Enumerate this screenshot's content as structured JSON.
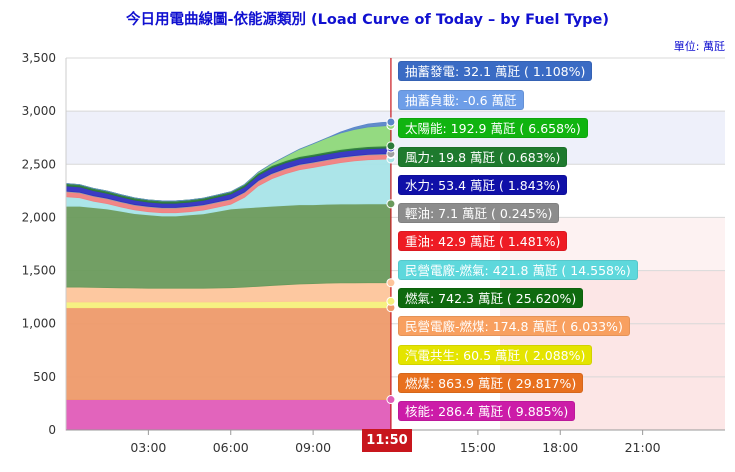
{
  "title": "今日用電曲線圖-依能源類別 (Load Curve of Today – by Fuel Type)",
  "unit_label": "單位: 萬瓩",
  "current_time": "11:50",
  "chart_data": {
    "type": "area",
    "stacked": true,
    "title": "今日用電曲線圖-依能源類別 (Load Curve of Today – by Fuel Type)",
    "ylim": [
      0,
      3500
    ],
    "yticks": [
      "0",
      "500",
      "1,000",
      "1,500",
      "2,000",
      "2,500",
      "3,000",
      "3,500"
    ],
    "xticks": [
      "03:00",
      "06:00",
      "09:00",
      "15:00",
      "18:00",
      "21:00"
    ],
    "x": [
      "00:00",
      "00:30",
      "01:00",
      "01:30",
      "02:00",
      "02:30",
      "03:00",
      "03:30",
      "04:00",
      "04:30",
      "05:00",
      "05:30",
      "06:00",
      "06:30",
      "07:00",
      "07:30",
      "08:00",
      "08:30",
      "09:00",
      "09:30",
      "10:00",
      "10:30",
      "11:00",
      "11:30",
      "11:50"
    ],
    "series": [
      {
        "name": "核能",
        "color": "#e05cb8",
        "values": [
          286,
          286,
          286,
          286,
          286,
          286,
          286,
          286,
          286,
          286,
          286,
          286,
          286,
          286,
          286,
          286,
          286,
          286,
          286,
          286,
          286,
          286,
          286,
          286,
          286.4
        ]
      },
      {
        "name": "燃煤",
        "color": "#ee9a6a",
        "values": [
          864,
          864,
          864,
          864,
          864,
          864,
          864,
          864,
          864,
          864,
          864,
          864,
          864,
          864,
          864,
          864,
          864,
          864,
          864,
          864,
          864,
          864,
          864,
          864,
          863.9
        ]
      },
      {
        "name": "汽電共生",
        "color": "#f5f07c",
        "values": [
          55,
          55,
          54,
          54,
          54,
          54,
          54,
          54,
          54,
          54,
          54,
          54,
          55,
          56,
          57,
          58,
          59,
          60,
          60,
          60,
          60,
          60,
          61,
          61,
          60.5
        ]
      },
      {
        "name": "民營電廠-燃煤",
        "color": "#fdc59b",
        "values": [
          140,
          140,
          138,
          136,
          134,
          132,
          130,
          130,
          130,
          130,
          130,
          132,
          134,
          138,
          145,
          152,
          158,
          164,
          168,
          172,
          174,
          175,
          175,
          175,
          174.8
        ]
      },
      {
        "name": "燃氣",
        "color": "#6a9a5c",
        "values": [
          760,
          760,
          750,
          740,
          720,
          700,
          690,
          680,
          680,
          690,
          700,
          720,
          740,
          745,
          745,
          745,
          745,
          745,
          742,
          742,
          742,
          742,
          742,
          742,
          742.3
        ]
      },
      {
        "name": "民營電廠-燃氣",
        "color": "#a8e4e8",
        "values": [
          90,
          80,
          60,
          50,
          40,
          35,
          30,
          30,
          30,
          30,
          35,
          40,
          45,
          100,
          200,
          260,
          300,
          330,
          350,
          370,
          390,
          405,
          415,
          420,
          421.8
        ]
      },
      {
        "name": "重油",
        "color": "#f08080",
        "values": [
          45,
          45,
          45,
          44,
          44,
          43,
          43,
          43,
          43,
          43,
          43,
          43,
          43,
          43,
          43,
          43,
          43,
          43,
          43,
          43,
          43,
          43,
          43,
          43,
          42.9
        ]
      },
      {
        "name": "輕油",
        "color": "#a0a0a0",
        "values": [
          7,
          7,
          7,
          7,
          7,
          7,
          7,
          7,
          7,
          7,
          7,
          7,
          7,
          7,
          7,
          7,
          7,
          7,
          7,
          7,
          7,
          7,
          7,
          7,
          7.1
        ]
      },
      {
        "name": "水力",
        "color": "#3030c0",
        "values": [
          50,
          50,
          48,
          46,
          44,
          42,
          40,
          40,
          40,
          40,
          42,
          44,
          46,
          48,
          50,
          52,
          53,
          53,
          53,
          53,
          53,
          53,
          53,
          53,
          53.4
        ]
      },
      {
        "name": "風力",
        "color": "#2a7a3a",
        "values": [
          22,
          22,
          21,
          21,
          21,
          21,
          21,
          21,
          21,
          21,
          21,
          21,
          21,
          21,
          20,
          20,
          20,
          20,
          20,
          20,
          20,
          20,
          20,
          20,
          19.8
        ]
      },
      {
        "name": "太陽能",
        "color": "#8ed87a",
        "values": [
          0,
          0,
          0,
          0,
          0,
          0,
          0,
          0,
          0,
          0,
          0,
          0,
          0,
          2,
          8,
          20,
          40,
          70,
          100,
          130,
          155,
          172,
          185,
          190,
          192.9
        ]
      },
      {
        "name": "抽蓄發電",
        "color": "#5a86c8",
        "values": [
          0,
          0,
          0,
          0,
          0,
          0,
          0,
          0,
          0,
          0,
          0,
          0,
          0,
          0,
          0,
          0,
          0,
          0,
          0,
          0,
          10,
          20,
          28,
          32,
          32.1
        ]
      }
    ]
  },
  "tooltips": [
    {
      "text": "抽蓄發電: 32.1 萬瓩 ( 1.108%)",
      "bg": "#3a6bc4",
      "fg": "#ffffff"
    },
    {
      "text": "抽蓄負載: -0.6 萬瓩",
      "bg": "#6e9ee8",
      "fg": "#ffffff"
    },
    {
      "text": "太陽能: 192.9 萬瓩 ( 6.658%)",
      "bg": "#10b410",
      "fg": "#ffffff"
    },
    {
      "text": "風力: 19.8 萬瓩 ( 0.683%)",
      "bg": "#1e7a2e",
      "fg": "#ffffff"
    },
    {
      "text": "水力: 53.4 萬瓩 ( 1.843%)",
      "bg": "#1010a8",
      "fg": "#ffffff"
    },
    {
      "text": "輕油: 7.1 萬瓩 ( 0.245%)",
      "bg": "#8c8c8c",
      "fg": "#ffffff"
    },
    {
      "text": "重油: 42.9 萬瓩 ( 1.481%)",
      "bg": "#ee1c24",
      "fg": "#ffffff"
    },
    {
      "text": "民營電廠-燃氣: 421.8 萬瓩 ( 14.558%)",
      "bg": "#5ed8dc",
      "fg": "#ffffff"
    },
    {
      "text": "燃氣: 742.3 萬瓩 ( 25.620%)",
      "bg": "#0e6a0e",
      "fg": "#ffffff"
    },
    {
      "text": "民營電廠-燃煤: 174.8 萬瓩 ( 6.033%)",
      "bg": "#f8a060",
      "fg": "#ffffff"
    },
    {
      "text": "汽電共生: 60.5 萬瓩 ( 2.088%)",
      "bg": "#e4e400",
      "fg": "#ffffff"
    },
    {
      "text": "燃煤: 863.9 萬瓩 ( 29.817%)",
      "bg": "#e8701e",
      "fg": "#ffffff"
    },
    {
      "text": "核能: 286.4 萬瓩 ( 9.885%)",
      "bg": "#cc1ca8",
      "fg": "#ffffff"
    }
  ]
}
